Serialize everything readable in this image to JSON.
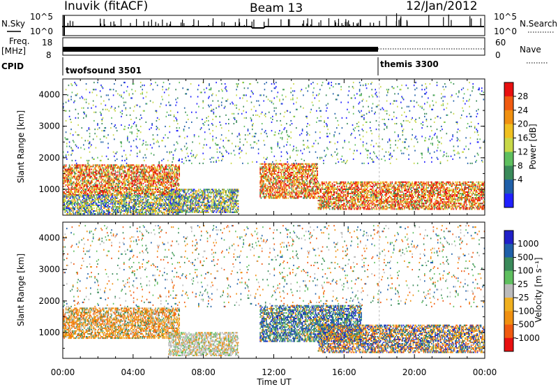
{
  "header": {
    "station": "Inuvik (fitACF)",
    "beam": "Beam 13",
    "date": "12/Jan/2012"
  },
  "top_strips": {
    "nsky_label": "N.Sky",
    "nsky_ticks": [
      "10^5",
      "10^0"
    ],
    "nsearch_label": "N.Search",
    "nsearch_ticks": [
      "10^5",
      "10^0"
    ],
    "freq_label_line1": "Freq.",
    "freq_label_line2": "[MHz]",
    "freq_ticks": [
      "18",
      "8"
    ],
    "nave_label": "Nave",
    "nave_ticks": [
      "60",
      "0"
    ],
    "cpid_label": "CPID",
    "cpid_modes": [
      {
        "name": "twofsound 3501",
        "start": "00:00",
        "end": "18:00"
      },
      {
        "name": "themis 3300",
        "start": "18:00",
        "end": "24:00"
      }
    ]
  },
  "chart_data": [
    {
      "type": "heatmap",
      "title": "",
      "xlabel": "Time UT",
      "ylabel": "Slant Range [km]",
      "x_ticks": [
        "00:00",
        "04:00",
        "08:00",
        "12:00",
        "16:00",
        "20:00",
        "00:00"
      ],
      "y_ticks": [
        1000,
        2000,
        3000,
        4000
      ],
      "xlim": [
        0,
        24
      ],
      "ylim": [
        180,
        4500
      ],
      "colorbar": {
        "label": "Power [dB]",
        "ticks": [
          "28",
          "24",
          "20",
          "16",
          "12",
          "8",
          "4"
        ],
        "colors": [
          "#2020ff",
          "#1f5fa8",
          "#3a8a5a",
          "#5fbf5f",
          "#c8d848",
          "#f0c020",
          "#f09010",
          "#f05a10",
          "#e81010"
        ]
      },
      "echo_regions": [
        {
          "t0": 0.0,
          "t1": 6.6,
          "r0": 800,
          "r1": 1750,
          "level": "strong"
        },
        {
          "t0": 0.0,
          "t1": 6.6,
          "r0": 200,
          "r1": 800,
          "level": "moderate"
        },
        {
          "t0": 6.0,
          "t1": 10.0,
          "r0": 250,
          "r1": 1000,
          "level": "moderate"
        },
        {
          "t0": 11.2,
          "t1": 14.5,
          "r0": 700,
          "r1": 1800,
          "level": "strong"
        },
        {
          "t0": 14.5,
          "t1": 24.0,
          "r0": 350,
          "r1": 1250,
          "level": "strong"
        },
        {
          "t0": 0.0,
          "t1": 24.0,
          "r0": 1800,
          "r1": 4400,
          "level": "sparse"
        }
      ]
    },
    {
      "type": "heatmap",
      "title": "",
      "xlabel": "Time UT",
      "ylabel": "Slant Range [km]",
      "x_ticks": [
        "00:00",
        "04:00",
        "08:00",
        "12:00",
        "16:00",
        "20:00",
        "00:00"
      ],
      "y_ticks": [
        1000,
        2000,
        3000,
        4000
      ],
      "xlim": [
        0,
        24
      ],
      "ylim": [
        180,
        4500
      ],
      "colorbar": {
        "label": "Velocity [m s⁻¹]",
        "ticks": [
          "1000",
          "500",
          "100",
          "25",
          "-25",
          "-100",
          "-500",
          "-1000"
        ],
        "colors": [
          "#e81010",
          "#f05a10",
          "#f09010",
          "#f0b020",
          "#bbbbbb",
          "#5fbf5f",
          "#3a8a5a",
          "#1f5fa8",
          "#2020c8"
        ]
      },
      "echo_regions": [
        {
          "t0": 0.0,
          "t1": 6.6,
          "r0": 800,
          "r1": 1750,
          "level": "negative"
        },
        {
          "t0": 6.0,
          "t1": 10.0,
          "r0": 250,
          "r1": 1000,
          "level": "near-zero"
        },
        {
          "t0": 11.2,
          "t1": 17.0,
          "r0": 700,
          "r1": 1850,
          "level": "positive"
        },
        {
          "t0": 14.5,
          "t1": 24.0,
          "r0": 350,
          "r1": 1250,
          "level": "mixed"
        },
        {
          "t0": 0.0,
          "t1": 24.0,
          "r0": 1800,
          "r1": 4400,
          "level": "sparse"
        }
      ]
    }
  ]
}
